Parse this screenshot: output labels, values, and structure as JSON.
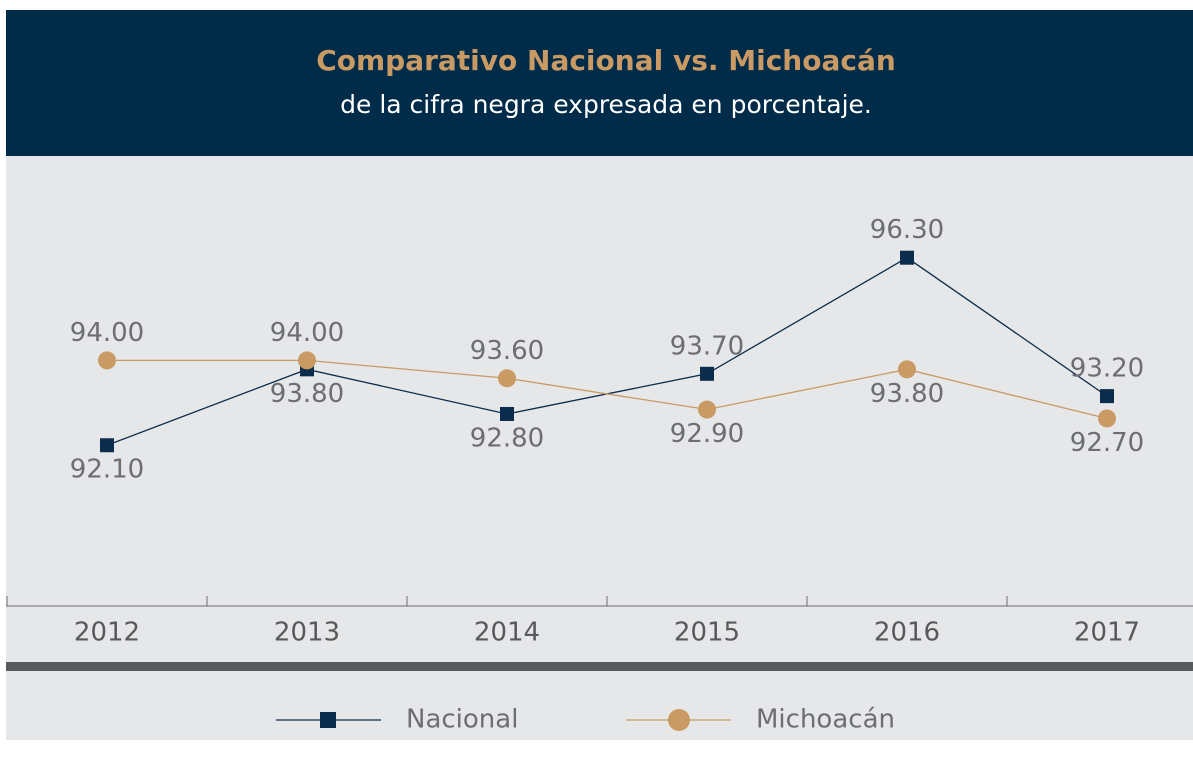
{
  "chart_data": {
    "type": "line",
    "title": "Comparativo Nacional vs. Michoacán",
    "subtitle": "de la cifra negra expresada en porcentaje.",
    "categories": [
      "2012",
      "2013",
      "2014",
      "2015",
      "2016",
      "2017"
    ],
    "series": [
      {
        "name": "Nacional",
        "color": "#0b2c4c",
        "marker": "square",
        "values": [
          92.1,
          93.8,
          92.8,
          93.7,
          96.3,
          93.2
        ],
        "value_labels": [
          "92.10",
          "93.80",
          "92.80",
          "93.70",
          "96.30",
          "93.20"
        ]
      },
      {
        "name": "Michoacán",
        "color": "#c99a63",
        "marker": "circle",
        "values": [
          94.0,
          94.0,
          93.6,
          92.9,
          93.8,
          92.7
        ],
        "value_labels": [
          "94.00",
          "94.00",
          "93.60",
          "92.90",
          "93.80",
          "92.70"
        ]
      }
    ],
    "ylim": [
      88.5,
      98.6
    ],
    "legend": "bottom"
  }
}
